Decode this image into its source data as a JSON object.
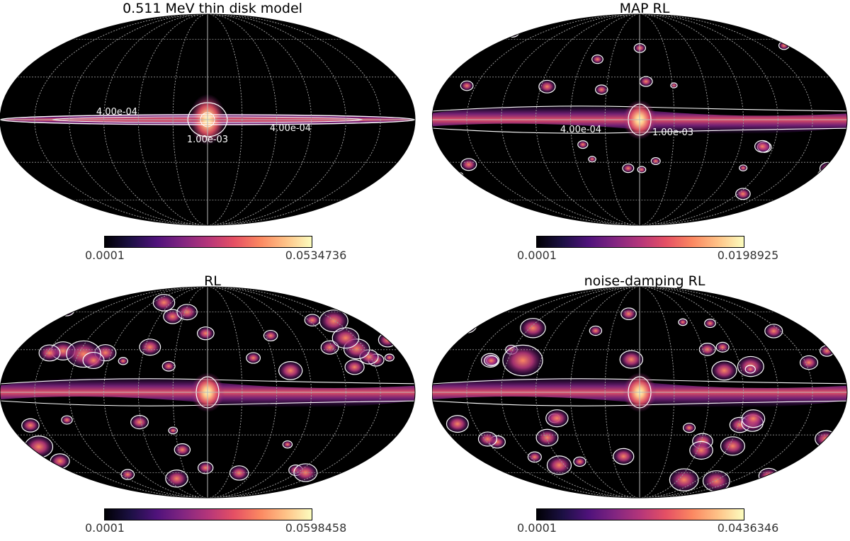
{
  "figure": {
    "panels": [
      {
        "title": "0.511 MeV thin disk model",
        "cbar_min": "0.0001",
        "cbar_max": "0.0534736",
        "contour_labels": [
          "4.00e-04",
          "1.00e-03",
          "4.00e-04"
        ]
      },
      {
        "title": "MAP RL",
        "cbar_min": "0.0001",
        "cbar_max": "0.0198925",
        "contour_labels": [
          "4.00e-04",
          "1.00e-03"
        ]
      },
      {
        "title": "RL",
        "cbar_min": "0.0001",
        "cbar_max": "0.0598458",
        "contour_labels": []
      },
      {
        "title": "noise-damping RL",
        "cbar_min": "0.0001",
        "cbar_max": "0.0436346",
        "contour_labels": []
      }
    ],
    "colormap": "magma",
    "map_background": "#000000",
    "graticule_color": "#9a9a9a",
    "contour_color": "#ffffff"
  },
  "chart_data": [
    {
      "type": "heatmap",
      "projection": "mollweide",
      "title": "0.511 MeV thin disk model",
      "colorbar_range": [
        0.0001,
        0.0534736
      ],
      "contour_levels": [
        0.0004,
        0.001
      ],
      "description": "thin Galactic-plane disk with bright central bulge"
    },
    {
      "type": "heatmap",
      "projection": "mollweide",
      "title": "MAP RL",
      "colorbar_range": [
        0.0001,
        0.0198925
      ],
      "contour_levels": [
        0.0004,
        0.001
      ]
    },
    {
      "type": "heatmap",
      "projection": "mollweide",
      "title": "RL",
      "colorbar_range": [
        0.0001,
        0.0598458
      ]
    },
    {
      "type": "heatmap",
      "projection": "mollweide",
      "title": "noise-damping RL",
      "colorbar_range": [
        0.0001,
        0.0436346
      ]
    }
  ]
}
